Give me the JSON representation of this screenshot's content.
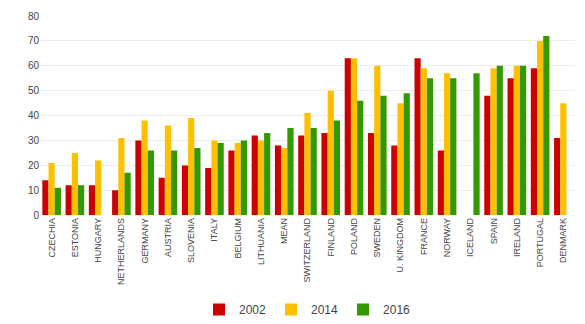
{
  "chart_data": {
    "type": "bar",
    "categories": [
      "CZECHIA",
      "ESTONIA",
      "HUNGARY",
      "NETHERLANDS",
      "GERMANY",
      "AUSTRIA",
      "SLOVENIA",
      "ITALY",
      "BELGIUM",
      "LITHUANIA",
      "MEAN",
      "SWITZERLAND",
      "FINLAND",
      "POLAND",
      "SWEDEN",
      "U. KINGDOM",
      "FRANCE",
      "NORWAY",
      "ICELAND",
      "SPAIN",
      "IRELAND",
      "PORTUGAL",
      "DENMARK"
    ],
    "series": [
      {
        "name": "2002",
        "color": "#cc0000",
        "values": [
          14,
          12,
          12,
          10,
          30,
          15,
          20,
          19,
          26,
          32,
          28,
          32,
          33,
          63,
          33,
          28,
          63,
          26,
          null,
          48,
          55,
          59,
          31
        ]
      },
      {
        "name": "2014",
        "color": "#ffc000",
        "values": [
          21,
          25,
          22,
          31,
          38,
          36,
          39,
          30,
          29,
          30,
          27,
          41,
          50,
          63,
          60,
          45,
          59,
          57,
          null,
          59,
          60,
          70,
          45
        ]
      },
      {
        "name": "2016",
        "color": "#339900",
        "values": [
          11,
          12,
          null,
          17,
          26,
          26,
          27,
          29,
          30,
          33,
          35,
          35,
          38,
          46,
          48,
          49,
          55,
          55,
          57,
          60,
          60,
          72,
          null
        ]
      }
    ],
    "ylim": [
      0,
      80
    ],
    "yticks": [
      0,
      10,
      20,
      30,
      40,
      50,
      60,
      70,
      80
    ],
    "grid": true,
    "legend": "bottom"
  }
}
